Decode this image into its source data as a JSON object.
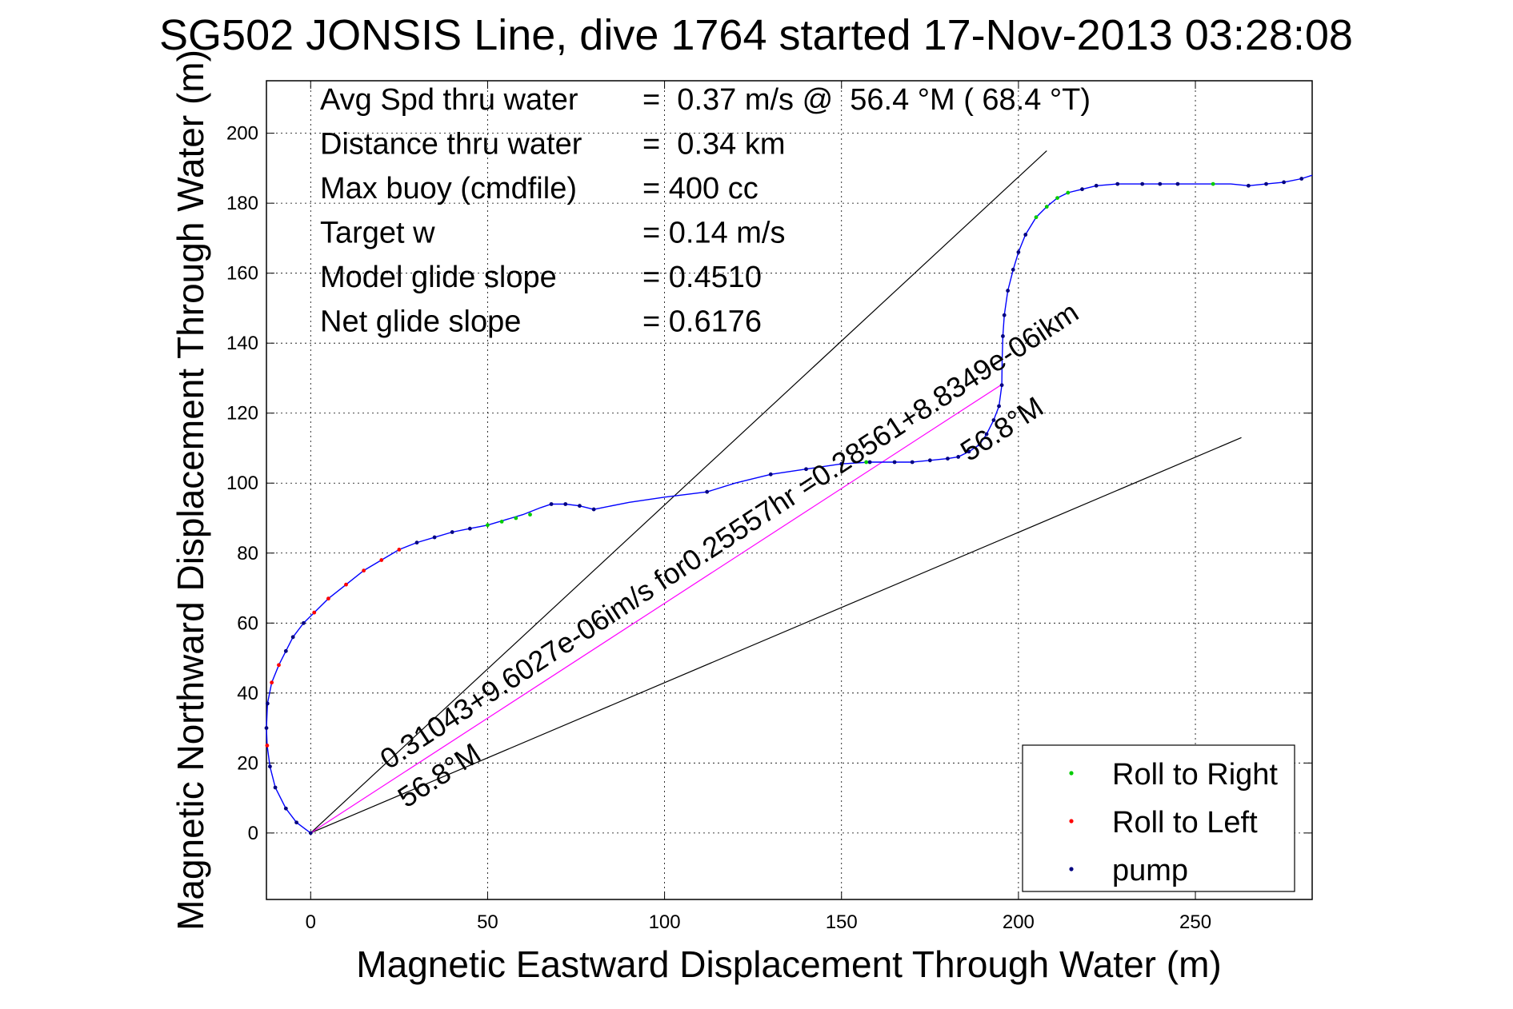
{
  "chart_data": {
    "type": "line",
    "title": "SG502 JONSIS Line, dive 1764 started 17-Nov-2013 03:28:08",
    "xlabel": "Magnetic Eastward Displacement Through Water (m)",
    "ylabel": "Magnetic Northward Displacement Through Water (m)",
    "xlim": [
      -12.5,
      283
    ],
    "ylim": [
      -19,
      215
    ],
    "xticks": [
      0,
      50,
      100,
      150,
      200,
      250
    ],
    "yticks": [
      0,
      20,
      40,
      60,
      80,
      100,
      120,
      140,
      160,
      180,
      200
    ],
    "grid": true,
    "legend_position": "bottom-right",
    "stats": [
      {
        "label": "Avg Spd thru water",
        "value": "=  0.37 m/s @  56.4 °M ( 68.4 °T)"
      },
      {
        "label": "Distance thru water",
        "value": "=  0.34 km"
      },
      {
        "label": "Max buoy (cmdfile)",
        "value": "= 400 cc"
      },
      {
        "label": "Target w",
        "value": "= 0.14 m/s"
      },
      {
        "label": "Model glide slope",
        "value": "= 0.4510"
      },
      {
        "label": "Net glide slope",
        "value": "= 0.6176"
      }
    ],
    "annotations": [
      {
        "text": "0.31043+9.6027e-06im/s for0.25557hr =0.28561+8.8349e-06ikm",
        "x": 22,
        "y": 18,
        "angle_deg": 33.2
      },
      {
        "text": "56.8°M",
        "x": 27,
        "y": 7,
        "angle_deg": 33.2
      },
      {
        "text": "56.8°M",
        "x": 186,
        "y": 106,
        "angle_deg": 33.2
      }
    ],
    "series": [
      {
        "name": "track",
        "color": "#0000ff",
        "x": [
          0,
          -4,
          -7,
          -10,
          -11.5,
          -12.3,
          -12.5,
          -12.2,
          -11,
          -9,
          -7,
          -5,
          -2,
          1,
          5,
          10,
          15,
          20,
          25,
          30,
          35,
          40,
          45,
          50,
          55,
          60,
          65,
          68,
          72,
          76,
          80,
          90,
          100,
          112,
          120,
          130,
          140,
          150,
          158,
          165,
          170,
          175,
          180,
          183,
          186,
          189,
          191,
          193,
          194.5,
          195.3,
          195.4,
          195.6,
          196,
          197,
          198.5,
          200,
          202,
          205,
          208,
          211,
          214,
          218,
          222,
          228,
          235,
          240,
          245,
          250,
          255,
          260,
          265,
          270,
          275,
          280,
          283
        ],
        "y": [
          0,
          3,
          7,
          13,
          19,
          25,
          30,
          37,
          43,
          48,
          52,
          56,
          60,
          63,
          67,
          71,
          75,
          78,
          81,
          83,
          84.5,
          86,
          87,
          88,
          89.5,
          91,
          93,
          94,
          94,
          93.5,
          92.5,
          94.5,
          96,
          97.5,
          100,
          102.5,
          104,
          105.5,
          106,
          106,
          106,
          106.5,
          107,
          107.5,
          109,
          111,
          114,
          118,
          122,
          128,
          135,
          142,
          148,
          155,
          161,
          166,
          171,
          176,
          179,
          181.5,
          183,
          184,
          185,
          185.5,
          185.5,
          185.5,
          185.5,
          185.5,
          185.5,
          185.5,
          185,
          185.5,
          186,
          187,
          188
        ]
      },
      {
        "name": "Roll to Right",
        "color": "#00cc00",
        "x": [
          50,
          54,
          58,
          62,
          157,
          205,
          208,
          211,
          214,
          255
        ],
        "y": [
          88,
          89,
          90,
          91,
          106,
          176,
          179,
          181.5,
          183,
          185.5
        ]
      },
      {
        "name": "Roll to Left",
        "color": "#ff0000",
        "x": [
          -12.3,
          -11,
          -9,
          1,
          5,
          10,
          15,
          20,
          25
        ],
        "y": [
          25,
          43,
          48,
          63,
          67,
          71,
          75,
          78,
          81
        ]
      },
      {
        "name": "pump",
        "color": "#000080",
        "x": [
          0,
          -4,
          -7,
          -10,
          -11.5,
          -12.5,
          -12.2,
          -7,
          -5,
          -2,
          30,
          35,
          40,
          45,
          68,
          72,
          76,
          80,
          112,
          130,
          140,
          150,
          158,
          165,
          170,
          175,
          180,
          183,
          186,
          189,
          191,
          193,
          194.5,
          195.3,
          195.6,
          196,
          197,
          198.5,
          200,
          202,
          218,
          222,
          228,
          235,
          240,
          245,
          265,
          270,
          275,
          280
        ],
        "y": [
          0,
          3,
          7,
          13,
          19,
          30,
          37,
          52,
          56,
          60,
          83,
          84.5,
          86,
          87,
          94,
          94,
          93.5,
          92.5,
          97.5,
          102.5,
          104,
          105.5,
          106,
          106,
          106,
          106.5,
          107,
          107.5,
          109,
          111,
          114,
          118,
          122,
          128,
          142,
          148,
          155,
          161,
          166,
          171,
          184,
          185,
          185.5,
          185.5,
          185.5,
          185.5,
          185,
          185.5,
          186,
          187
        ]
      }
    ],
    "reference_lines": [
      {
        "color": "#000000",
        "x": [
          0,
          208
        ],
        "y": [
          0,
          195
        ]
      },
      {
        "color": "#000000",
        "x": [
          0,
          263
        ],
        "y": [
          0,
          113
        ]
      },
      {
        "color": "#ff00ff",
        "x": [
          0,
          195
        ],
        "y": [
          0,
          128
        ]
      }
    ],
    "legend": [
      {
        "label": "Roll to Right",
        "color": "#00cc00"
      },
      {
        "label": "Roll to Left",
        "color": "#ff0000"
      },
      {
        "label": "pump",
        "color": "#000080"
      }
    ]
  }
}
